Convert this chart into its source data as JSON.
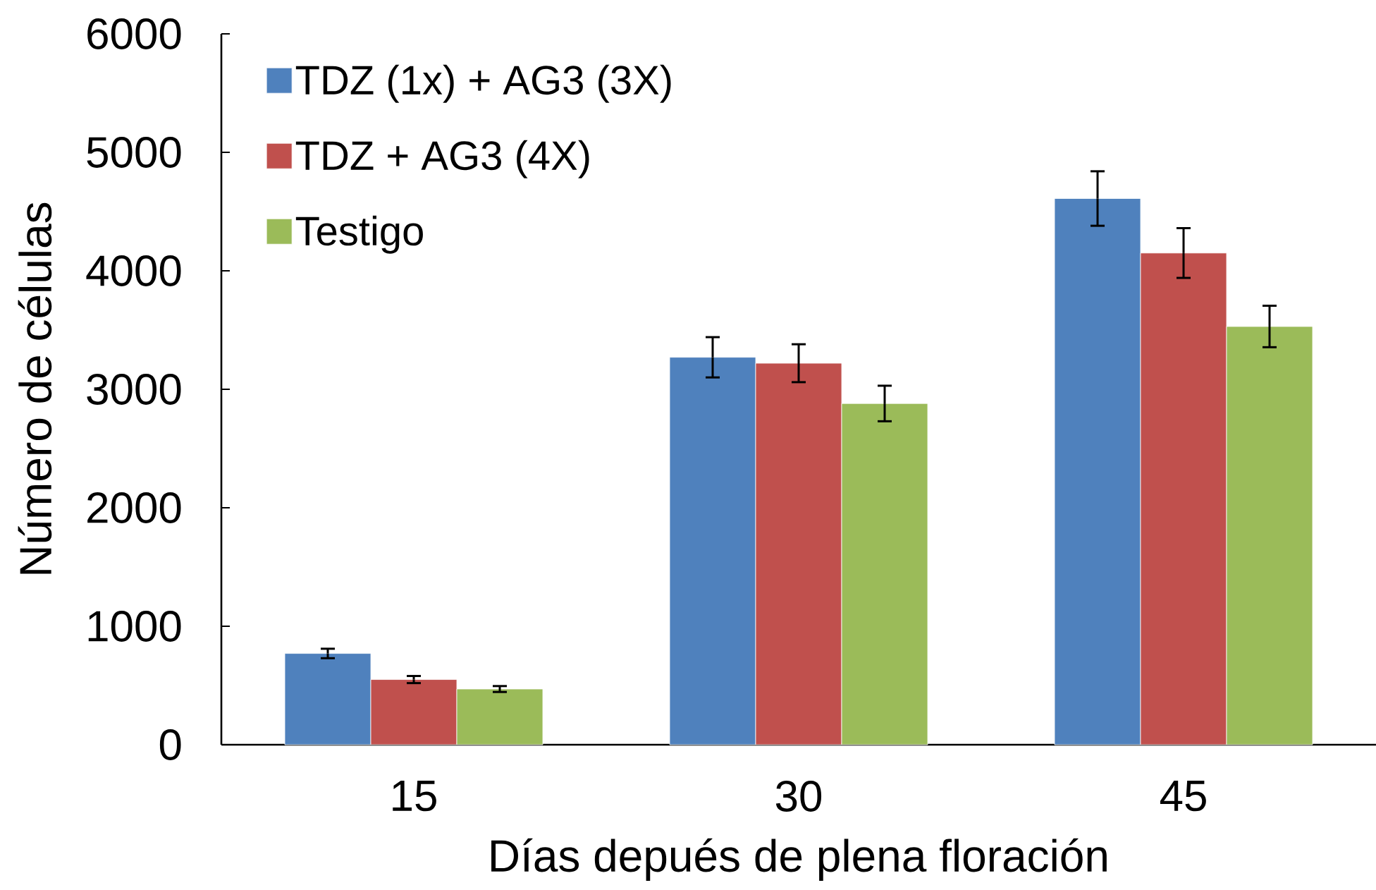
{
  "chart_data": {
    "type": "bar",
    "xlabel": "Días depués de plena floración",
    "ylabel": "Número de células",
    "categories": [
      "15",
      "30",
      "45"
    ],
    "series": [
      {
        "name": "TDZ (1x) + AG3 (3X)",
        "color": "#4f81bd",
        "values": [
          770,
          3270,
          4610
        ],
        "errors": [
          40,
          170,
          230
        ]
      },
      {
        "name": "TDZ + AG3 (4X)",
        "color": "#c0504d",
        "values": [
          550,
          3220,
          4150
        ],
        "errors": [
          30,
          160,
          210
        ]
      },
      {
        "name": "Testigo",
        "color": "#9bbb59",
        "values": [
          470,
          2880,
          3530
        ],
        "errors": [
          25,
          150,
          175
        ]
      }
    ],
    "ylim": [
      0,
      6000
    ],
    "yticks": [
      0,
      1000,
      2000,
      3000,
      4000,
      5000,
      6000
    ],
    "legend": "top left"
  }
}
